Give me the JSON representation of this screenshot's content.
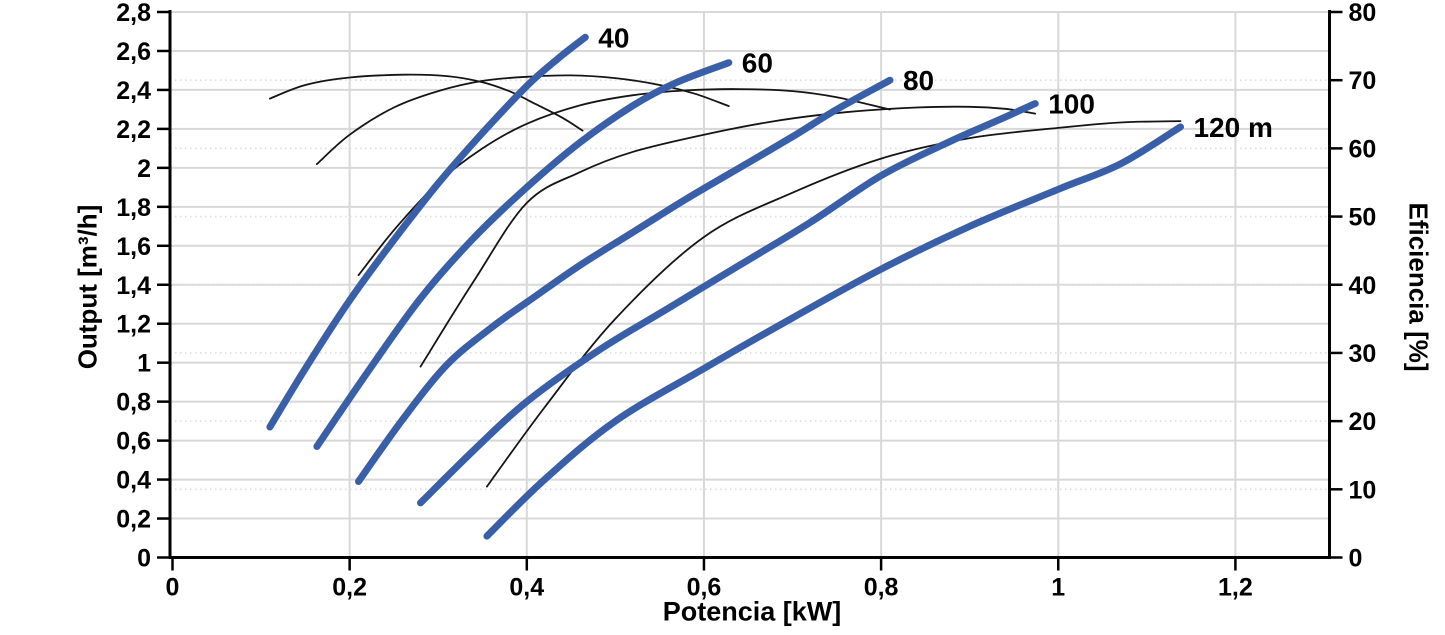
{
  "chart_data": {
    "type": "line",
    "title": "",
    "xlabel": "Potencia [kW]",
    "ylabel_left": "Output [m³/h]",
    "ylabel_right": "Eficiencia [%]",
    "xlim": [
      0,
      1.307
    ],
    "ylim_left": [
      0,
      2.8
    ],
    "ylim_right": [
      0,
      80
    ],
    "grid": {
      "solid_major": true,
      "dotted_at_right_axis_ticks": true,
      "legend": "none"
    },
    "x_tick_values": [
      0,
      0.2,
      0.4,
      0.6,
      0.8,
      1.0,
      1.2
    ],
    "x_tick_labels": [
      "0",
      "0,2",
      "0,4",
      "0,6",
      "0,8",
      "1",
      "1,2"
    ],
    "y_left_tick_values": [
      0,
      0.2,
      0.4,
      0.6,
      0.8,
      1.0,
      1.2,
      1.4,
      1.6,
      1.8,
      2.0,
      2.2,
      2.4,
      2.6,
      2.8
    ],
    "y_left_tick_labels": [
      "0",
      "0,2",
      "0,4",
      "0,6",
      "0,8",
      "1",
      "1,2",
      "1,4",
      "1,6",
      "1,8",
      "2",
      "2,2",
      "2,4",
      "2,6",
      "2,8"
    ],
    "y_right_tick_values": [
      0,
      10,
      20,
      30,
      40,
      50,
      60,
      70,
      80
    ],
    "y_right_tick_labels": [
      "0",
      "10",
      "20",
      "30",
      "40",
      "50",
      "60",
      "70",
      "80"
    ],
    "colors": {
      "curve_blue": "#3A5FA9",
      "curve_black": "#151515",
      "grid_solid": "#d8d8d8",
      "grid_dotted": "#dedede",
      "axis": "#000000",
      "text": "#000000"
    },
    "series": [
      {
        "name": "output-40",
        "label": "40",
        "head_m": 40,
        "axis": "left",
        "points": [
          [
            0.11,
            0.67
          ],
          [
            0.15,
            0.97
          ],
          [
            0.2,
            1.32
          ],
          [
            0.25,
            1.63
          ],
          [
            0.3,
            1.92
          ],
          [
            0.35,
            2.18
          ],
          [
            0.4,
            2.42
          ],
          [
            0.435,
            2.56
          ],
          [
            0.466,
            2.67
          ]
        ]
      },
      {
        "name": "output-60",
        "label": "60",
        "head_m": 60,
        "axis": "left",
        "points": [
          [
            0.163,
            0.57
          ],
          [
            0.22,
            0.95
          ],
          [
            0.28,
            1.33
          ],
          [
            0.34,
            1.64
          ],
          [
            0.4,
            1.9
          ],
          [
            0.46,
            2.13
          ],
          [
            0.52,
            2.32
          ],
          [
            0.57,
            2.44
          ],
          [
            0.628,
            2.54
          ]
        ]
      },
      {
        "name": "output-80",
        "label": "80",
        "head_m": 80,
        "axis": "left",
        "points": [
          [
            0.21,
            0.39
          ],
          [
            0.26,
            0.71
          ],
          [
            0.31,
            0.99
          ],
          [
            0.36,
            1.18
          ],
          [
            0.4,
            1.31
          ],
          [
            0.46,
            1.5
          ],
          [
            0.52,
            1.67
          ],
          [
            0.58,
            1.84
          ],
          [
            0.64,
            2.0
          ],
          [
            0.7,
            2.16
          ],
          [
            0.75,
            2.3
          ],
          [
            0.81,
            2.45
          ]
        ]
      },
      {
        "name": "output-100",
        "label": "100",
        "head_m": 100,
        "axis": "left",
        "points": [
          [
            0.28,
            0.28
          ],
          [
            0.34,
            0.55
          ],
          [
            0.4,
            0.8
          ],
          [
            0.48,
            1.06
          ],
          [
            0.56,
            1.28
          ],
          [
            0.64,
            1.5
          ],
          [
            0.72,
            1.72
          ],
          [
            0.8,
            1.96
          ],
          [
            0.88,
            2.14
          ],
          [
            0.93,
            2.24
          ],
          [
            0.974,
            2.33
          ]
        ]
      },
      {
        "name": "output-120",
        "label": "120 m",
        "head_m": 120,
        "axis": "left",
        "points": [
          [
            0.355,
            0.11
          ],
          [
            0.42,
            0.4
          ],
          [
            0.5,
            0.7
          ],
          [
            0.6,
            0.97
          ],
          [
            0.7,
            1.23
          ],
          [
            0.8,
            1.48
          ],
          [
            0.9,
            1.7
          ],
          [
            1.0,
            1.89
          ],
          [
            1.07,
            2.02
          ],
          [
            1.138,
            2.21
          ]
        ]
      }
    ],
    "efficiency_series": [
      {
        "name": "efficiency-40",
        "head_m": 40,
        "axis": "right",
        "points": [
          [
            0.11,
            67.3
          ],
          [
            0.15,
            69.3
          ],
          [
            0.2,
            70.4
          ],
          [
            0.26,
            70.8
          ],
          [
            0.31,
            70.6
          ],
          [
            0.35,
            69.7
          ],
          [
            0.38,
            68.4
          ],
          [
            0.41,
            66.5
          ],
          [
            0.44,
            64.5
          ],
          [
            0.463,
            62.6
          ]
        ]
      },
      {
        "name": "efficiency-60",
        "head_m": 60,
        "axis": "right",
        "points": [
          [
            0.163,
            57.7
          ],
          [
            0.2,
            62.0
          ],
          [
            0.25,
            66.0
          ],
          [
            0.3,
            68.4
          ],
          [
            0.35,
            69.9
          ],
          [
            0.4,
            70.5
          ],
          [
            0.45,
            70.7
          ],
          [
            0.5,
            70.3
          ],
          [
            0.55,
            69.3
          ],
          [
            0.59,
            68.0
          ],
          [
            0.628,
            66.2
          ]
        ]
      },
      {
        "name": "efficiency-80",
        "head_m": 80,
        "axis": "right",
        "points": [
          [
            0.21,
            41.4
          ],
          [
            0.25,
            48.0
          ],
          [
            0.3,
            55.0
          ],
          [
            0.35,
            60.0
          ],
          [
            0.4,
            63.6
          ],
          [
            0.46,
            66.3
          ],
          [
            0.52,
            67.8
          ],
          [
            0.58,
            68.5
          ],
          [
            0.64,
            68.7
          ],
          [
            0.7,
            68.4
          ],
          [
            0.75,
            67.5
          ],
          [
            0.81,
            65.7
          ]
        ]
      },
      {
        "name": "efficiency-100",
        "head_m": 100,
        "axis": "right",
        "points": [
          [
            0.28,
            28.0
          ],
          [
            0.34,
            40.5
          ],
          [
            0.4,
            52.0
          ],
          [
            0.46,
            56.5
          ],
          [
            0.52,
            59.5
          ],
          [
            0.6,
            62.0
          ],
          [
            0.68,
            64.0
          ],
          [
            0.76,
            65.3
          ],
          [
            0.84,
            66.0
          ],
          [
            0.9,
            66.1
          ],
          [
            0.94,
            65.8
          ],
          [
            0.974,
            65.1
          ]
        ]
      },
      {
        "name": "efficiency-120",
        "head_m": 120,
        "axis": "right",
        "points": [
          [
            0.355,
            10.4
          ],
          [
            0.42,
            22.0
          ],
          [
            0.5,
            35.0
          ],
          [
            0.6,
            47.0
          ],
          [
            0.7,
            53.5
          ],
          [
            0.8,
            58.5
          ],
          [
            0.9,
            61.5
          ],
          [
            1.0,
            63.0
          ],
          [
            1.07,
            63.8
          ],
          [
            1.138,
            64.0
          ]
        ]
      }
    ]
  }
}
